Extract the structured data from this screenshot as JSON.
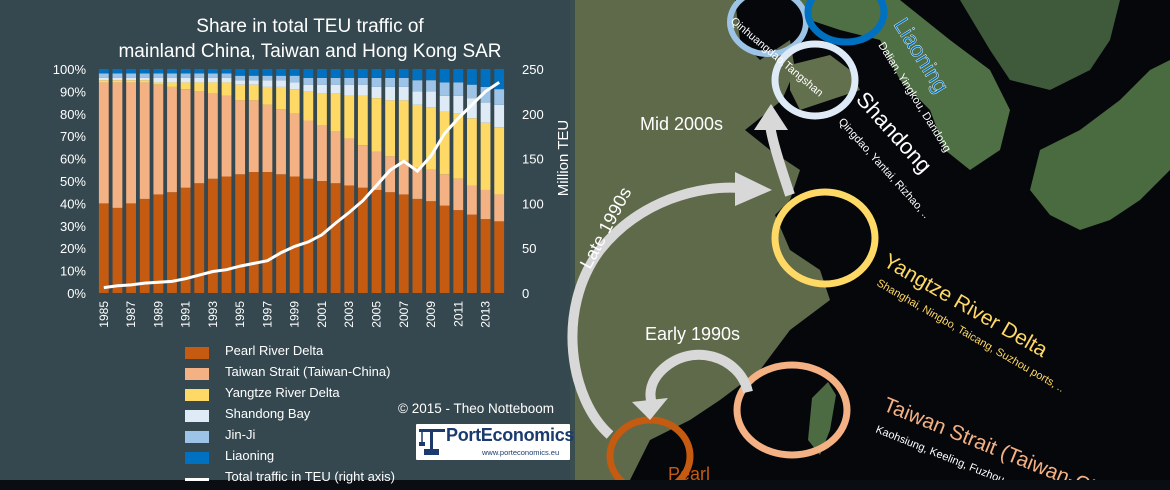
{
  "chart_data": {
    "type": "bar",
    "stacked": true,
    "title": "Share in total TEU traffic of mainland China, Taiwan and Hong Kong SAR",
    "title_lines": [
      "Share in total TEU traffic of",
      "mainland China, Taiwan and Hong Kong SAR"
    ],
    "categories": [
      "1985",
      "1986",
      "1987",
      "1988",
      "1989",
      "1990",
      "1991",
      "1992",
      "1993",
      "1994",
      "1995",
      "1996",
      "1997",
      "1998",
      "1999",
      "2000",
      "2001",
      "2002",
      "2003",
      "2004",
      "2005",
      "2006",
      "2007",
      "2008",
      "2009",
      "2010",
      "2011",
      "2012",
      "2013",
      "2014"
    ],
    "x_tick_labels": [
      "1985",
      "1987",
      "1989",
      "1991",
      "1993",
      "1995",
      "1997",
      "1999",
      "2001",
      "2003",
      "2005",
      "2007",
      "2009",
      "2011",
      "2013"
    ],
    "ylim": [
      0,
      100
    ],
    "y_tick_labels": [
      "0%",
      "10%",
      "20%",
      "30%",
      "40%",
      "50%",
      "60%",
      "70%",
      "80%",
      "90%",
      "100%"
    ],
    "y2lim": [
      0,
      250
    ],
    "y2_tick_labels": [
      "0",
      "50",
      "100",
      "150",
      "200",
      "250"
    ],
    "y2label": "Million TEU",
    "series": [
      {
        "name": "Pearl River Delta",
        "color": "#c55a11",
        "values": [
          40,
          38,
          40,
          42,
          44,
          45,
          47,
          49,
          51,
          52,
          53,
          54,
          54,
          53,
          52,
          51,
          50,
          49,
          48,
          47,
          46,
          45,
          44,
          42,
          41,
          39,
          37,
          35,
          33,
          32
        ]
      },
      {
        "name": "Taiwan Strait (Taiwan-China)",
        "color": "#f4b183",
        "values": [
          54,
          56,
          54,
          52,
          49,
          47,
          44,
          41,
          38,
          36,
          33,
          32,
          30,
          29,
          28,
          26,
          25,
          23,
          21,
          19,
          17,
          16,
          15,
          14,
          14,
          14,
          14,
          13,
          13,
          12
        ]
      },
      {
        "name": "Yangtze River Delta",
        "color": "#ffd966",
        "values": [
          1,
          1,
          1,
          1,
          1,
          2,
          3,
          4,
          5,
          6,
          7,
          7,
          8,
          10,
          11,
          13,
          14,
          17,
          19,
          22,
          24,
          25,
          27,
          28,
          28,
          28,
          29,
          30,
          30,
          30
        ]
      },
      {
        "name": "Shandong Bay",
        "color": "#deebf7",
        "values": [
          1,
          1,
          1,
          1,
          2,
          2,
          2,
          2,
          2,
          2,
          2,
          2,
          3,
          3,
          3,
          3,
          4,
          4,
          5,
          5,
          5,
          6,
          6,
          6,
          7,
          7,
          8,
          9,
          9,
          10
        ]
      },
      {
        "name": "Jin-Ji",
        "color": "#9dc3e6",
        "values": [
          2,
          2,
          2,
          2,
          2,
          2,
          2,
          2,
          2,
          2,
          2,
          2,
          2,
          2,
          3,
          3,
          3,
          3,
          3,
          3,
          4,
          4,
          4,
          5,
          5,
          6,
          6,
          6,
          7,
          7
        ]
      },
      {
        "name": "Liaoning",
        "color": "#0070c0",
        "values": [
          2,
          2,
          2,
          2,
          2,
          2,
          2,
          2,
          2,
          2,
          3,
          3,
          3,
          3,
          3,
          4,
          4,
          4,
          4,
          4,
          4,
          4,
          4,
          5,
          5,
          6,
          6,
          7,
          8,
          9
        ]
      }
    ],
    "line_series": {
      "name": "Total traffic in TEU (right axis)",
      "axis": "right",
      "color": "#ffffff",
      "values": [
        6,
        8,
        9,
        11,
        12,
        13,
        16,
        20,
        24,
        26,
        30,
        33,
        36,
        45,
        52,
        57,
        65,
        78,
        90,
        103,
        120,
        137,
        147,
        136,
        153,
        178,
        195,
        210,
        225,
        235
      ]
    },
    "grid": false,
    "legend_position": "bottom-left"
  },
  "credit": "© 2015 - Theo Notteboom",
  "logo": {
    "name": "PortEconomics",
    "url": "www.porteconomics.eu"
  },
  "map": {
    "labels": {
      "liaoning": "Liaoning",
      "liaoning_ports": "Dalian, Yingkou, Dandong",
      "shandong": "Shandong",
      "shandong_ports": "Qingdao, Yantai, Rizhao, ..",
      "yangtze": "Yangtze River Delta",
      "yangtze_ports": "Shanghai, Ningbo, Taicang, Suzhou ports, ..",
      "taiwan": "Taiwan Strait (Taiwan-Chi",
      "taiwan_ports": "Kaohsiung, Keeling, Fuzhou, ..",
      "prd_partial": "Pearl",
      "top_cut": "Qinhuangdao,Tangshan"
    },
    "arrows": {
      "mid2000s": "Mid 2000s",
      "late1990s": "Late 1990s",
      "early1990s": "Early 1990s"
    }
  }
}
